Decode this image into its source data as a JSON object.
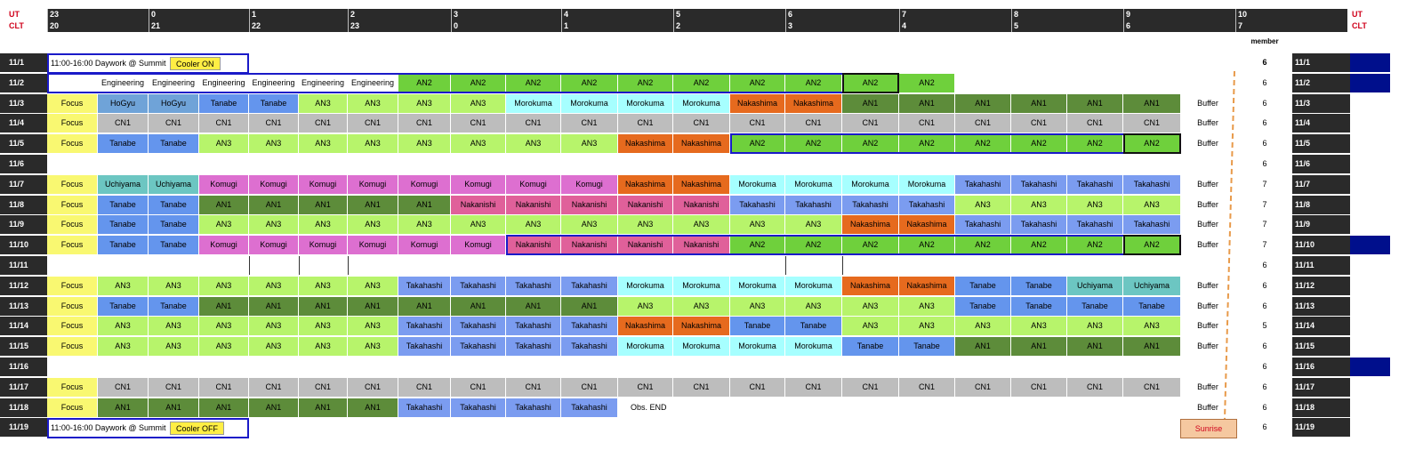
{
  "header": {
    "ut_label": "UT",
    "clt_label": "CLT",
    "member_title": "member",
    "ticks": [
      {
        "ut": "23",
        "clt": "20"
      },
      {
        "ut": "0",
        "clt": "21"
      },
      {
        "ut": "1",
        "clt": "22"
      },
      {
        "ut": "2",
        "clt": "23"
      },
      {
        "ut": "3",
        "clt": "0"
      },
      {
        "ut": "4",
        "clt": "1"
      },
      {
        "ut": "5",
        "clt": "2"
      },
      {
        "ut": "6",
        "clt": "3"
      },
      {
        "ut": "7",
        "clt": "4"
      },
      {
        "ut": "8",
        "clt": "5"
      },
      {
        "ut": "9",
        "clt": "6"
      },
      {
        "ut": "10",
        "clt": "7"
      }
    ]
  },
  "notes": {
    "first": {
      "text": "11:00-16:00  Daywork @ Summit",
      "button": "Cooler ON"
    },
    "last": {
      "text": "11:00-16:00  Daywork @ Summit",
      "button": "Cooler OFF"
    }
  },
  "sunrise_label": "Sunrise",
  "obs_end_label": "Obs. END",
  "buffer_label": "Buffer",
  "rows": [
    {
      "date": "11/1",
      "member": "6",
      "cells": [],
      "buffer": false,
      "navy": true,
      "note": "first"
    },
    {
      "date": "11/2",
      "member": "6",
      "cells": [
        "Engineering",
        "Engineering",
        "Engineering",
        "Engineering",
        "Engineering",
        "Engineering",
        "AN2",
        "AN2",
        "AN2",
        "AN2",
        "AN2",
        "AN2",
        "AN2",
        "AN2",
        "AN2",
        "AN2"
      ],
      "start": 1,
      "buffer": false,
      "navy": true
    },
    {
      "date": "11/3",
      "member": "6",
      "cells": [
        "Focus",
        "HoGyu",
        "HoGyu",
        "Tanabe",
        "Tanabe",
        "AN3",
        "AN3",
        "AN3",
        "AN3",
        "Morokuma",
        "Morokuma",
        "Morokuma",
        "Morokuma",
        "Nakashima",
        "Nakashima",
        "AN1",
        "AN1",
        "AN1",
        "AN1",
        "AN1",
        "AN1"
      ],
      "start": 0,
      "buffer": true,
      "navy": false
    },
    {
      "date": "11/4",
      "member": "6",
      "cells": [
        "Focus",
        "CN1",
        "CN1",
        "CN1",
        "CN1",
        "CN1",
        "CN1",
        "CN1",
        "CN1",
        "CN1",
        "CN1",
        "CN1",
        "CN1",
        "CN1",
        "CN1",
        "CN1",
        "CN1",
        "CN1",
        "CN1",
        "CN1",
        "CN1"
      ],
      "start": 0,
      "buffer": true,
      "navy": false
    },
    {
      "date": "11/5",
      "member": "6",
      "cells": [
        "Focus",
        "Tanabe",
        "Tanabe",
        "AN3",
        "AN3",
        "AN3",
        "AN3",
        "AN3",
        "AN3",
        "AN3",
        "AN3",
        "Nakashima",
        "Nakashima",
        "AN2",
        "AN2",
        "AN2",
        "AN2",
        "AN2",
        "AN2",
        "AN2",
        "AN2"
      ],
      "start": 0,
      "buffer": true,
      "navy": false
    },
    {
      "date": "11/6",
      "member": "6",
      "cells": [],
      "buffer": false,
      "navy": false
    },
    {
      "date": "11/7",
      "member": "7",
      "cells": [
        "Focus",
        "Uchiyama",
        "Uchiyama",
        "Komugi",
        "Komugi",
        "Komugi",
        "Komugi",
        "Komugi",
        "Komugi",
        "Komugi",
        "Komugi",
        "Nakashima",
        "Nakashima",
        "Morokuma",
        "Morokuma",
        "Morokuma",
        "Morokuma",
        "Takahashi",
        "Takahashi",
        "Takahashi",
        "Takahashi"
      ],
      "start": 0,
      "buffer": true,
      "navy": false
    },
    {
      "date": "11/8",
      "member": "7",
      "cells": [
        "Focus",
        "Tanabe",
        "Tanabe",
        "AN1",
        "AN1",
        "AN1",
        "AN1",
        "AN1",
        "Nakanishi",
        "Nakanishi",
        "Nakanishi",
        "Nakanishi",
        "Nakanishi",
        "Takahashi",
        "Takahashi",
        "Takahashi",
        "Takahashi",
        "AN3",
        "AN3",
        "AN3",
        "AN3"
      ],
      "start": 0,
      "buffer": true,
      "navy": false
    },
    {
      "date": "11/9",
      "member": "7",
      "cells": [
        "Focus",
        "Tanabe",
        "Tanabe",
        "AN3",
        "AN3",
        "AN3",
        "AN3",
        "AN3",
        "AN3",
        "AN3",
        "AN3",
        "AN3",
        "AN3",
        "AN3",
        "AN3",
        "Nakashima",
        "Nakashima",
        "Takahashi",
        "Takahashi",
        "Takahashi",
        "Takahashi"
      ],
      "start": 0,
      "buffer": true,
      "navy": false
    },
    {
      "date": "11/10",
      "member": "7",
      "cells": [
        "Focus",
        "Tanabe",
        "Tanabe",
        "Komugi",
        "Komugi",
        "Komugi",
        "Komugi",
        "Komugi",
        "Komugi",
        "Nakanishi",
        "Nakanishi",
        "Nakanishi",
        "Nakanishi",
        "AN2",
        "AN2",
        "AN2",
        "AN2",
        "AN2",
        "AN2",
        "AN2",
        "AN2"
      ],
      "start": 0,
      "buffer": true,
      "navy": true
    },
    {
      "date": "11/11",
      "member": "6",
      "cells": [],
      "buffer": false,
      "navy": false
    },
    {
      "date": "11/12",
      "member": "6",
      "cells": [
        "Focus",
        "AN3",
        "AN3",
        "AN3",
        "AN3",
        "AN3",
        "AN3",
        "Takahashi",
        "Takahashi",
        "Takahashi",
        "Takahashi",
        "Morokuma",
        "Morokuma",
        "Morokuma",
        "Morokuma",
        "Nakashima",
        "Nakashima",
        "Tanabe",
        "Tanabe",
        "Uchiyama",
        "Uchiyama"
      ],
      "start": 0,
      "buffer": true,
      "navy": false
    },
    {
      "date": "11/13",
      "member": "6",
      "cells": [
        "Focus",
        "Tanabe",
        "Tanabe",
        "AN1",
        "AN1",
        "AN1",
        "AN1",
        "AN1",
        "AN1",
        "AN1",
        "AN1",
        "AN3",
        "AN3",
        "AN3",
        "AN3",
        "AN3",
        "AN3",
        "Tanabe",
        "Tanabe",
        "Tanabe",
        "Tanabe"
      ],
      "start": 0,
      "buffer": true,
      "navy": false
    },
    {
      "date": "11/14",
      "member": "5",
      "cells": [
        "Focus",
        "AN3",
        "AN3",
        "AN3",
        "AN3",
        "AN3",
        "AN3",
        "Takahashi",
        "Takahashi",
        "Takahashi",
        "Takahashi",
        "Nakashima",
        "Nakashima",
        "Tanabe",
        "Tanabe",
        "AN3",
        "AN3",
        "AN3",
        "AN3",
        "AN3",
        "AN3"
      ],
      "start": 0,
      "buffer": true,
      "navy": false
    },
    {
      "date": "11/15",
      "member": "6",
      "cells": [
        "Focus",
        "AN3",
        "AN3",
        "AN3",
        "AN3",
        "AN3",
        "AN3",
        "Takahashi",
        "Takahashi",
        "Takahashi",
        "Takahashi",
        "Morokuma",
        "Morokuma",
        "Morokuma",
        "Morokuma",
        "Tanabe",
        "Tanabe",
        "AN1",
        "AN1",
        "AN1",
        "AN1"
      ],
      "start": 0,
      "buffer": true,
      "navy": false
    },
    {
      "date": "11/16",
      "member": "6",
      "cells": [],
      "buffer": false,
      "navy": true
    },
    {
      "date": "11/17",
      "member": "6",
      "cells": [
        "Focus",
        "CN1",
        "CN1",
        "CN1",
        "CN1",
        "CN1",
        "CN1",
        "CN1",
        "CN1",
        "CN1",
        "CN1",
        "CN1",
        "CN1",
        "CN1",
        "CN1",
        "CN1",
        "CN1",
        "CN1",
        "CN1",
        "CN1",
        "CN1"
      ],
      "start": 0,
      "buffer": true,
      "navy": false
    },
    {
      "date": "11/18",
      "member": "6",
      "cells": [
        "Focus",
        "AN1",
        "AN1",
        "AN1",
        "AN1",
        "AN1",
        "AN1",
        "Takahashi",
        "Takahashi",
        "Takahashi",
        "Takahashi",
        "Obs. END"
      ],
      "start": 0,
      "buffer": true,
      "navy": false
    },
    {
      "date": "11/19",
      "member": "6",
      "cells": [],
      "buffer": false,
      "navy": false,
      "note": "last"
    }
  ]
}
